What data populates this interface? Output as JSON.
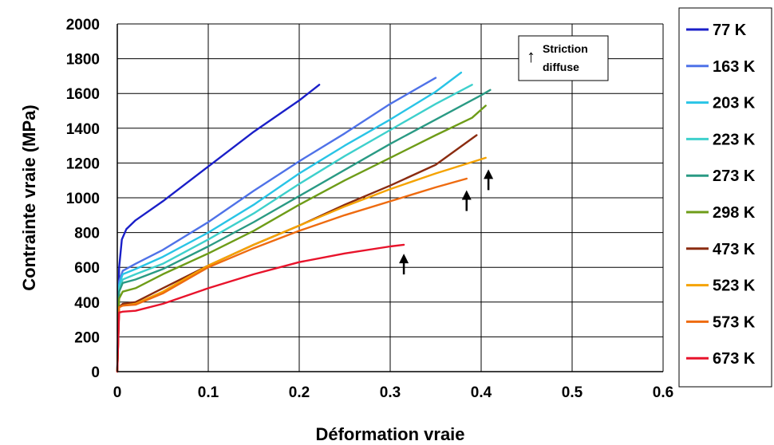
{
  "chart_data": {
    "type": "line",
    "title": "",
    "xlabel": "Déformation vraie",
    "ylabel": "Contrainte vraie (MPa)",
    "xlim": [
      0,
      0.6
    ],
    "ylim": [
      0,
      2000
    ],
    "x_ticks": [
      "0",
      "0.1",
      "0.2",
      "0.3",
      "0.4",
      "0.5",
      "0.6"
    ],
    "y_ticks": [
      "0",
      "200",
      "400",
      "600",
      "800",
      "1000",
      "1200",
      "1400",
      "1600",
      "1800",
      "2000"
    ],
    "grid": true,
    "legend_position": "right",
    "annotation": {
      "symbol": "↑",
      "line1": "Striction",
      "line2": "diffuse",
      "points": [
        [
          0.315,
          660
        ],
        [
          0.384,
          1025
        ],
        [
          0.408,
          1145
        ]
      ]
    },
    "series": [
      {
        "name": "77 K",
        "color": "#1a1fc8",
        "points": [
          [
            0,
            0
          ],
          [
            0.002,
            600
          ],
          [
            0.005,
            760
          ],
          [
            0.01,
            820
          ],
          [
            0.02,
            870
          ],
          [
            0.05,
            980
          ],
          [
            0.1,
            1180
          ],
          [
            0.15,
            1380
          ],
          [
            0.2,
            1560
          ],
          [
            0.222,
            1650
          ]
        ]
      },
      {
        "name": "163 K",
        "color": "#4f72e8",
        "points": [
          [
            0,
            0
          ],
          [
            0.002,
            520
          ],
          [
            0.006,
            580
          ],
          [
            0.02,
            620
          ],
          [
            0.05,
            700
          ],
          [
            0.1,
            860
          ],
          [
            0.15,
            1040
          ],
          [
            0.2,
            1210
          ],
          [
            0.25,
            1370
          ],
          [
            0.3,
            1540
          ],
          [
            0.35,
            1690
          ]
        ]
      },
      {
        "name": "203 K",
        "color": "#29c4e6",
        "points": [
          [
            0,
            0
          ],
          [
            0.002,
            500
          ],
          [
            0.006,
            560
          ],
          [
            0.02,
            590
          ],
          [
            0.05,
            660
          ],
          [
            0.1,
            800
          ],
          [
            0.15,
            960
          ],
          [
            0.2,
            1140
          ],
          [
            0.25,
            1300
          ],
          [
            0.3,
            1450
          ],
          [
            0.35,
            1610
          ],
          [
            0.378,
            1720
          ]
        ]
      },
      {
        "name": "223 K",
        "color": "#3ed0cc",
        "points": [
          [
            0,
            0
          ],
          [
            0.002,
            480
          ],
          [
            0.006,
            530
          ],
          [
            0.02,
            560
          ],
          [
            0.05,
            620
          ],
          [
            0.1,
            760
          ],
          [
            0.15,
            910
          ],
          [
            0.2,
            1080
          ],
          [
            0.25,
            1240
          ],
          [
            0.3,
            1390
          ],
          [
            0.35,
            1540
          ],
          [
            0.39,
            1650
          ]
        ]
      },
      {
        "name": "273 K",
        "color": "#2a9a84",
        "points": [
          [
            0,
            0
          ],
          [
            0.002,
            460
          ],
          [
            0.006,
            510
          ],
          [
            0.02,
            530
          ],
          [
            0.05,
            590
          ],
          [
            0.1,
            720
          ],
          [
            0.15,
            860
          ],
          [
            0.2,
            1010
          ],
          [
            0.25,
            1160
          ],
          [
            0.3,
            1310
          ],
          [
            0.35,
            1450
          ],
          [
            0.4,
            1590
          ],
          [
            0.41,
            1620
          ]
        ]
      },
      {
        "name": "298 K",
        "color": "#6e9c18",
        "points": [
          [
            0,
            0
          ],
          [
            0.002,
            420
          ],
          [
            0.006,
            460
          ],
          [
            0.02,
            480
          ],
          [
            0.05,
            560
          ],
          [
            0.1,
            680
          ],
          [
            0.15,
            810
          ],
          [
            0.2,
            960
          ],
          [
            0.25,
            1100
          ],
          [
            0.3,
            1230
          ],
          [
            0.35,
            1360
          ],
          [
            0.39,
            1460
          ],
          [
            0.405,
            1530
          ]
        ]
      },
      {
        "name": "473 K",
        "color": "#8b2c10",
        "points": [
          [
            0,
            0
          ],
          [
            0.002,
            370
          ],
          [
            0.006,
            390
          ],
          [
            0.02,
            400
          ],
          [
            0.05,
            480
          ],
          [
            0.1,
            610
          ],
          [
            0.15,
            730
          ],
          [
            0.2,
            840
          ],
          [
            0.25,
            960
          ],
          [
            0.3,
            1070
          ],
          [
            0.35,
            1190
          ],
          [
            0.395,
            1360
          ]
        ]
      },
      {
        "name": "523 K",
        "color": "#f5a300",
        "points": [
          [
            0,
            0
          ],
          [
            0.002,
            370
          ],
          [
            0.006,
            380
          ],
          [
            0.02,
            390
          ],
          [
            0.05,
            460
          ],
          [
            0.1,
            610
          ],
          [
            0.15,
            730
          ],
          [
            0.2,
            840
          ],
          [
            0.25,
            950
          ],
          [
            0.3,
            1050
          ],
          [
            0.35,
            1140
          ],
          [
            0.405,
            1230
          ]
        ]
      },
      {
        "name": "573 K",
        "color": "#ee6b10",
        "points": [
          [
            0,
            0
          ],
          [
            0.002,
            370
          ],
          [
            0.006,
            380
          ],
          [
            0.02,
            385
          ],
          [
            0.05,
            450
          ],
          [
            0.1,
            600
          ],
          [
            0.15,
            710
          ],
          [
            0.2,
            810
          ],
          [
            0.25,
            900
          ],
          [
            0.3,
            980
          ],
          [
            0.35,
            1060
          ],
          [
            0.384,
            1110
          ]
        ]
      },
      {
        "name": "673 K",
        "color": "#e8132b",
        "points": [
          [
            0,
            0
          ],
          [
            0.002,
            340
          ],
          [
            0.006,
            345
          ],
          [
            0.02,
            350
          ],
          [
            0.05,
            390
          ],
          [
            0.1,
            480
          ],
          [
            0.15,
            560
          ],
          [
            0.2,
            630
          ],
          [
            0.25,
            680
          ],
          [
            0.3,
            720
          ],
          [
            0.315,
            730
          ]
        ]
      }
    ]
  }
}
